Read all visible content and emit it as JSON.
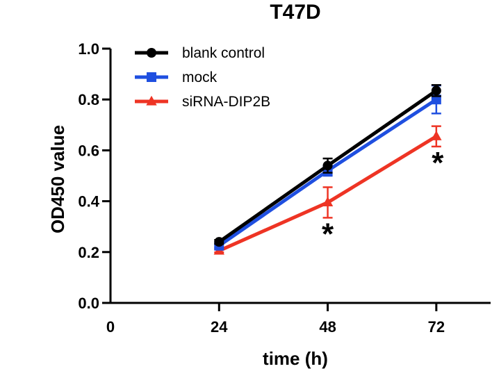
{
  "chart_data": {
    "type": "line",
    "title": "T47D",
    "xlabel": "time (h)",
    "ylabel": "OD450 value",
    "x": [
      24,
      48,
      72
    ],
    "xlim": [
      0,
      84
    ],
    "ylim": [
      0,
      1.0
    ],
    "x_ticks": [
      "0",
      "24",
      "48",
      "72"
    ],
    "y_ticks": [
      "0.0",
      "0.2",
      "0.4",
      "0.6",
      "0.8",
      "1.0"
    ],
    "grid": false,
    "legend_position": "top-left",
    "series": [
      {
        "name": "blank control",
        "values": [
          0.24,
          0.54,
          0.835
        ],
        "errors": [
          0.008,
          0.028,
          0.022
        ],
        "color": "#000000",
        "marker": "circle"
      },
      {
        "name": "mock",
        "values": [
          0.225,
          0.52,
          0.8
        ],
        "errors": [
          0.008,
          0.02,
          0.055
        ],
        "color": "#1f4fe0",
        "marker": "square"
      },
      {
        "name": "siRNA-DIP2B",
        "values": [
          0.205,
          0.395,
          0.655
        ],
        "errors": [
          0.006,
          0.06,
          0.04
        ],
        "color": "#ee3424",
        "marker": "triangle"
      }
    ],
    "annotations": [
      {
        "text": "*",
        "x": 48,
        "series": "siRNA-DIP2B"
      },
      {
        "text": "*",
        "x": 72,
        "series": "siRNA-DIP2B"
      }
    ]
  }
}
